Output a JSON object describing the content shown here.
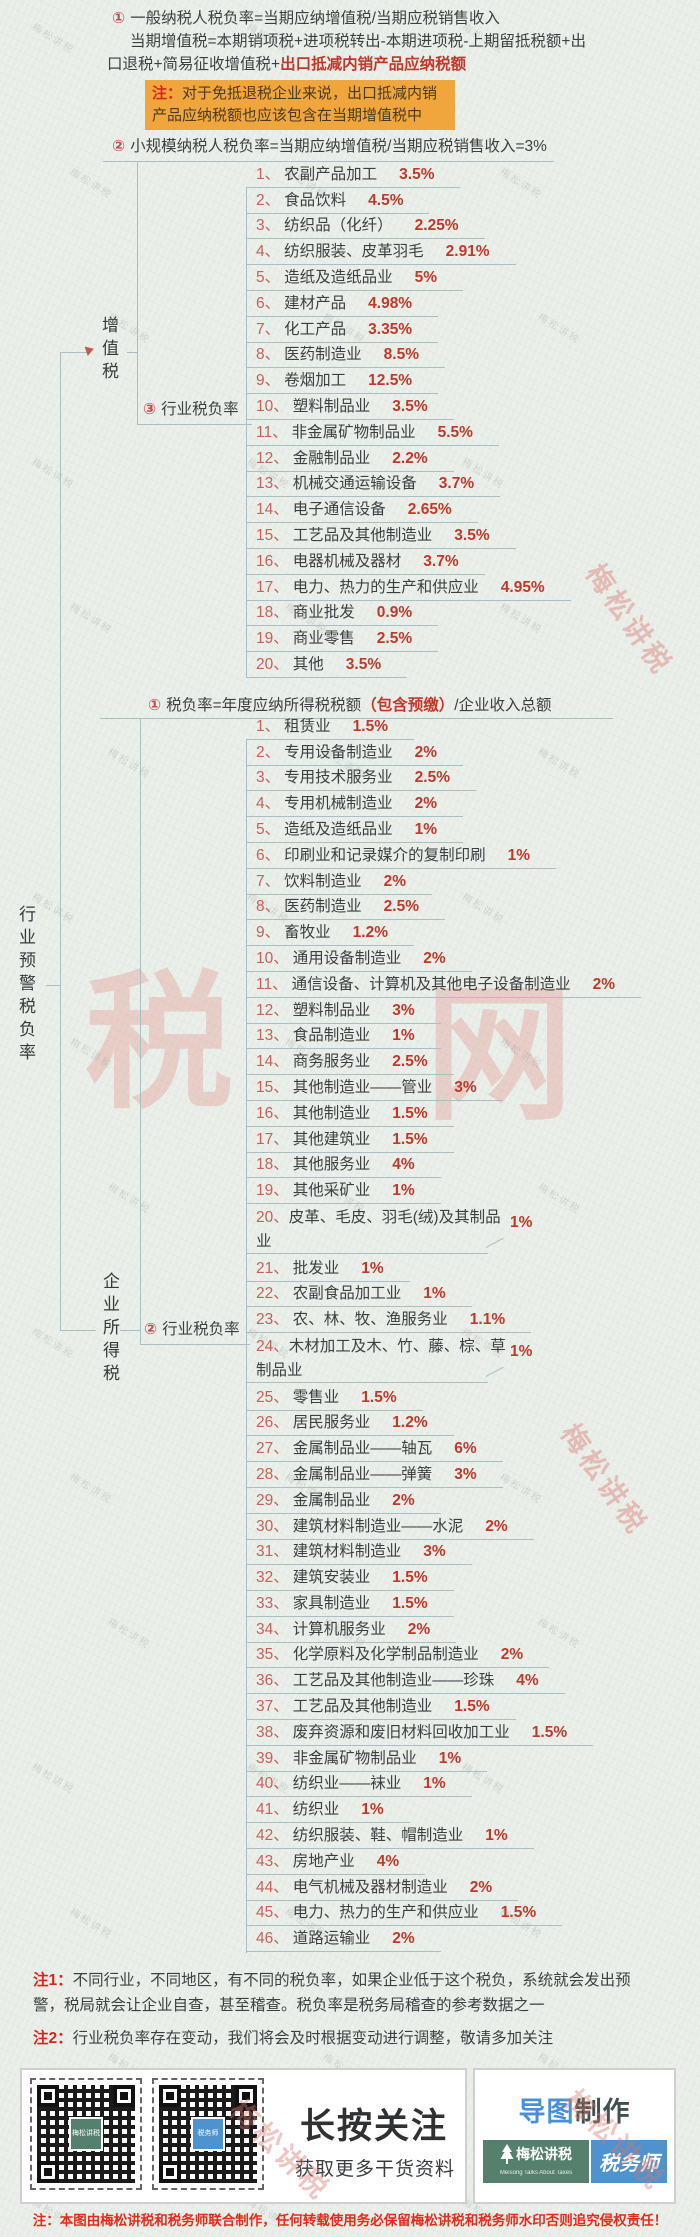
{
  "root": {
    "label": "行业预警税负率"
  },
  "vat": {
    "branch_label": "增值税",
    "general": {
      "num": "①",
      "line1": "一般纳税人税负率=当期应纳增值税/当期应税销售收入",
      "line2": "当期增值税=本期销项税+进项税转出-本期进项税-上期留抵税额+出",
      "line3_black": "口退税+简易征收增值税+",
      "line3_red": "出口抵减内销产品应纳税额"
    },
    "note": {
      "label": "注：",
      "text": "对于免抵退税企业来说，出口抵减内销产品应纳税额也应该包含在当期增值税中"
    },
    "small_scale": {
      "num": "②",
      "text": "小规模纳税人税负率=当期应纳增值税/当期应税销售收入=3%"
    },
    "industry": {
      "num": "③",
      "label": "行业税负率"
    },
    "items": [
      {
        "num": "1、",
        "label": "农副产品加工",
        "rate": "3.5%"
      },
      {
        "num": "2、",
        "label": "食品饮料",
        "rate": "4.5%"
      },
      {
        "num": "3、",
        "label": "纺织品（化纤）",
        "rate": "2.25%"
      },
      {
        "num": "4、",
        "label": "纺织服装、皮革羽毛",
        "rate": "2.91%"
      },
      {
        "num": "5、",
        "label": "造纸及造纸品业",
        "rate": "5%"
      },
      {
        "num": "6、",
        "label": "建材产品",
        "rate": "4.98%"
      },
      {
        "num": "7、",
        "label": "化工产品",
        "rate": "3.35%"
      },
      {
        "num": "8、",
        "label": "医药制造业",
        "rate": "8.5%"
      },
      {
        "num": "9、",
        "label": "卷烟加工",
        "rate": "12.5%"
      },
      {
        "num": "10、",
        "label": "塑料制品业",
        "rate": "3.5%"
      },
      {
        "num": "11、",
        "label": "非金属矿物制品业",
        "rate": "5.5%"
      },
      {
        "num": "12、",
        "label": "金融制品业",
        "rate": "2.2%"
      },
      {
        "num": "13、",
        "label": "机械交通运输设备",
        "rate": "3.7%"
      },
      {
        "num": "14、",
        "label": "电子通信设备",
        "rate": "2.65%"
      },
      {
        "num": "15、",
        "label": "工艺品及其他制造业",
        "rate": "3.5%"
      },
      {
        "num": "16、",
        "label": "电器机械及器材",
        "rate": "3.7%"
      },
      {
        "num": "17、",
        "label": "电力、热力的生产和供应业",
        "rate": "4.95%"
      },
      {
        "num": "18、",
        "label": "商业批发",
        "rate": "0.9%"
      },
      {
        "num": "19、",
        "label": "商业零售",
        "rate": "2.5%"
      },
      {
        "num": "20、",
        "label": "其他",
        "rate": "3.5%"
      }
    ]
  },
  "cit": {
    "branch_label": "企业所得税",
    "header": {
      "num": "①",
      "pre": "税负率=年度应纳所得税税额",
      "red": "（包含预缴）",
      "post": "/企业收入总额"
    },
    "industry": {
      "num": "②",
      "label": "行业税负率"
    },
    "items": [
      {
        "num": "1、",
        "label": "租赁业",
        "rate": "1.5%"
      },
      {
        "num": "2、",
        "label": "专用设备制造业",
        "rate": "2%"
      },
      {
        "num": "3、",
        "label": "专用技术服务业",
        "rate": "2.5%"
      },
      {
        "num": "4、",
        "label": "专用机械制造业",
        "rate": "2%"
      },
      {
        "num": "5、",
        "label": "造纸及造纸品业",
        "rate": "1%"
      },
      {
        "num": "6、",
        "label": "印刷业和记录媒介的复制印刷",
        "rate": "1%"
      },
      {
        "num": "7、",
        "label": "饮料制造业",
        "rate": "2%"
      },
      {
        "num": "8、",
        "label": "医药制造业",
        "rate": "2.5%"
      },
      {
        "num": "9、",
        "label": "畜牧业",
        "rate": "1.2%"
      },
      {
        "num": "10、",
        "label": "通用设备制造业",
        "rate": "2%"
      },
      {
        "num": "11、",
        "label": "通信设备、计算机及其他电子设备制造业",
        "rate": "2%"
      },
      {
        "num": "12、",
        "label": "塑料制品业",
        "rate": "3%"
      },
      {
        "num": "13、",
        "label": "食品制造业",
        "rate": "1%"
      },
      {
        "num": "14、",
        "label": "商务服务业",
        "rate": "2.5%"
      },
      {
        "num": "15、",
        "label": "其他制造业——管业",
        "rate": "3%"
      },
      {
        "num": "16、",
        "label": "其他制造业",
        "rate": "1.5%"
      },
      {
        "num": "17、",
        "label": "其他建筑业",
        "rate": "1.5%"
      },
      {
        "num": "18、",
        "label": "其他服务业",
        "rate": "4%"
      },
      {
        "num": "19、",
        "label": "其他采矿业",
        "rate": "1%"
      },
      {
        "num": "20、",
        "label": "皮革、毛皮、羽毛(绒)及其制品业",
        "rate": "1%",
        "wrap": true
      },
      {
        "num": "21、",
        "label": "批发业",
        "rate": "1%"
      },
      {
        "num": "22、",
        "label": "农副食品加工业",
        "rate": "1%"
      },
      {
        "num": "23、",
        "label": "农、林、牧、渔服务业",
        "rate": "1.1%"
      },
      {
        "num": "24、",
        "label": "木材加工及木、竹、藤、棕、草制品业",
        "rate": "1%",
        "wrap": true
      },
      {
        "num": "25、",
        "label": "零售业",
        "rate": "1.5%"
      },
      {
        "num": "26、",
        "label": "居民服务业",
        "rate": "1.2%"
      },
      {
        "num": "27、",
        "label": "金属制品业——轴瓦",
        "rate": "6%"
      },
      {
        "num": "28、",
        "label": "金属制品业——弹簧",
        "rate": "3%"
      },
      {
        "num": "29、",
        "label": "金属制品业",
        "rate": "2%"
      },
      {
        "num": "30、",
        "label": "建筑材料制造业——水泥",
        "rate": "2%"
      },
      {
        "num": "31、",
        "label": "建筑材料制造业",
        "rate": "3%"
      },
      {
        "num": "32、",
        "label": "建筑安装业",
        "rate": "1.5%"
      },
      {
        "num": "33、",
        "label": "家具制造业",
        "rate": "1.5%"
      },
      {
        "num": "34、",
        "label": "计算机服务业",
        "rate": "2%"
      },
      {
        "num": "35、",
        "label": "化学原料及化学制品制造业",
        "rate": "2%"
      },
      {
        "num": "36、",
        "label": "工艺品及其他制造业——珍珠",
        "rate": "4%"
      },
      {
        "num": "37、",
        "label": "工艺品及其他制造业",
        "rate": "1.5%"
      },
      {
        "num": "38、",
        "label": "废弃资源和废旧材料回收加工业",
        "rate": "1.5%"
      },
      {
        "num": "39、",
        "label": "非金属矿物制品业",
        "rate": "1%"
      },
      {
        "num": "40、",
        "label": "纺织业——袜业",
        "rate": "1%"
      },
      {
        "num": "41、",
        "label": "纺织业",
        "rate": "1%"
      },
      {
        "num": "42、",
        "label": "纺织服装、鞋、帽制造业",
        "rate": "1%"
      },
      {
        "num": "43、",
        "label": "房地产业",
        "rate": "4%"
      },
      {
        "num": "44、",
        "label": "电气机械及器材制造业",
        "rate": "2%"
      },
      {
        "num": "45、",
        "label": "电力、热力的生产和供应业",
        "rate": "1.5%"
      },
      {
        "num": "46、",
        "label": "道路运输业",
        "rate": "2%"
      }
    ]
  },
  "notes": {
    "n1_label": "注1：",
    "n1_text": "不同行业，不同地区，有不同的税负率，如果企业低于这个税负，系统就会发出预警，税局就会让企业自查，甚至稽查。税负率是税务局稽查的参考数据之一",
    "n2_label": "注2：",
    "n2_text": "行业税负率存在变动，我们将会及时根据变动进行调整，敬请多加关注"
  },
  "footer": {
    "follow_title": "长按关注",
    "follow_sub": "获取更多干货资料",
    "map_blue": "导图",
    "map_dark": "制作",
    "qr1_center": "梅松讲税",
    "qr2_center": "税务师",
    "badge1_label": "梅松讲税",
    "badge1_sub": "Meisong Talks About Taxes",
    "badge2_label": "税务师",
    "copyright": "注：本图由梅松讲税和税务师联合制作，任何转载使用务必保留梅松讲税和税务师水印否则追究侵权责任！"
  },
  "watermarks": {
    "big_left": "税",
    "big_right": "网",
    "diag": "梅松讲税"
  },
  "colors": {
    "accent_red": "#c0392b",
    "note_bg": "#f0a63c",
    "connector": "#a9bec5",
    "badge_teal": "#56806e",
    "badge_blue": "#4e93ce",
    "map_blue": "#4a90d9",
    "copyright_red": "#e62a1c"
  }
}
